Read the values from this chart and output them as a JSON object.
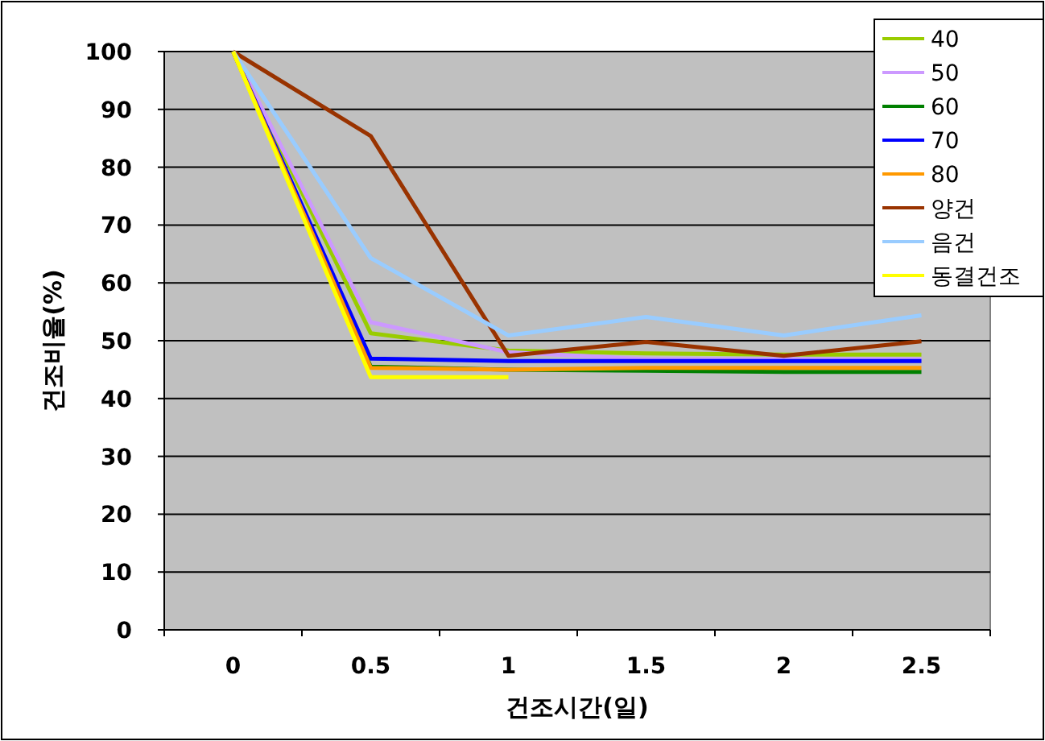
{
  "chart_data": {
    "type": "line",
    "xlabel": "건조시간(일)",
    "ylabel": "건조비율(%)",
    "categories": [
      "0",
      "0.5",
      "1",
      "1.5",
      "2",
      "2.5"
    ],
    "ylim": [
      0,
      100
    ],
    "yticks": [
      0,
      10,
      20,
      30,
      40,
      50,
      60,
      70,
      80,
      90,
      100
    ],
    "grid": "y",
    "legend": "top right",
    "marker": "none",
    "line_style": "solid",
    "series": [
      {
        "name": "40",
        "color": "#99cc00",
        "values": [
          100,
          51.3,
          48.3,
          47.8,
          47.6,
          47.6
        ]
      },
      {
        "name": "50",
        "color": "#cc99ff",
        "values": [
          100,
          53.2,
          48,
          46.8,
          46.8,
          46.8
        ]
      },
      {
        "name": "60",
        "color": "#008000",
        "values": [
          100,
          45.5,
          45,
          44.8,
          44.6,
          44.6
        ]
      },
      {
        "name": "70",
        "color": "#0000ff",
        "values": [
          100,
          46.9,
          46.5,
          46.5,
          46.5,
          46.5
        ]
      },
      {
        "name": "80",
        "color": "#ff9900",
        "values": [
          100,
          45.3,
          45,
          45.3,
          45.3,
          45.3
        ]
      },
      {
        "name": "양건",
        "color": "#993300",
        "values": [
          100,
          85.4,
          47.4,
          49.8,
          47.4,
          49.9
        ]
      },
      {
        "name": "음건",
        "color": "#99ccff",
        "values": [
          100,
          64.3,
          50.9,
          54.1,
          50.9,
          54.4
        ]
      },
      {
        "name": "동결건조",
        "color": "#ffff00",
        "values": [
          100,
          43.7,
          43.7,
          null,
          null,
          null
        ]
      }
    ]
  }
}
